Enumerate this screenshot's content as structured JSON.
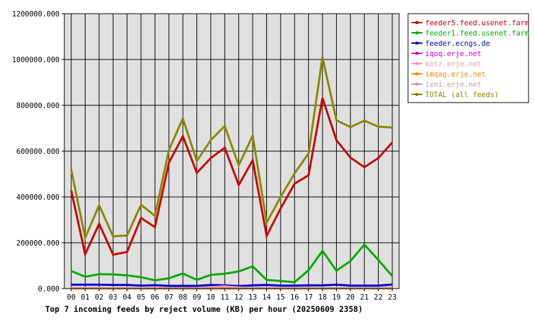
{
  "chart_data": {
    "type": "line",
    "title": "Top 7 incoming feeds by reject volume (KB) per hour (20250609 2358)",
    "xlabel": "",
    "ylabel": "",
    "categories": [
      "00",
      "01",
      "02",
      "03",
      "04",
      "05",
      "06",
      "07",
      "08",
      "09",
      "10",
      "11",
      "12",
      "13",
      "14",
      "15",
      "16",
      "17",
      "18",
      "19",
      "20",
      "21",
      "22",
      "23"
    ],
    "ylim": [
      0,
      1200000
    ],
    "yticks": [
      "0.000",
      "200000.000",
      "400000.000",
      "600000.000",
      "800000.000",
      "1000000.000",
      "1200000.000"
    ],
    "grid": true,
    "legend_position": "top-right",
    "series": [
      {
        "name": "feeder5.feed.usenet.farm",
        "color": "#cc0000",
        "values": [
          428000,
          150000,
          283000,
          148000,
          160000,
          308000,
          268000,
          550000,
          665000,
          505000,
          570000,
          615000,
          452000,
          560000,
          230000,
          350000,
          458000,
          495000,
          832000,
          648000,
          572000,
          530000,
          570000,
          638000
        ]
      },
      {
        "name": "feeder1.feed.usenet.farm",
        "color": "#00aa00",
        "values": [
          77000,
          52000,
          63000,
          62000,
          58000,
          50000,
          36000,
          45000,
          66000,
          38000,
          60000,
          65000,
          75000,
          97000,
          38000,
          33000,
          28000,
          80000,
          165000,
          78000,
          120000,
          192000,
          125000,
          55000
        ]
      },
      {
        "name": "feeder.ecngs.de",
        "color": "#0000cc",
        "values": [
          17000,
          17000,
          17000,
          16000,
          16000,
          13000,
          15000,
          12000,
          12000,
          12000,
          16000,
          14000,
          11000,
          14000,
          16000,
          13000,
          13000,
          14000,
          14000,
          17000,
          13000,
          13000,
          13000,
          18000
        ]
      },
      {
        "name": "iqoq.erje.net",
        "color": "#cc00cc",
        "values": [
          2000,
          2000,
          2000,
          2000,
          2000,
          2000,
          2000,
          2000,
          2000,
          2000,
          2000,
          2000,
          2000,
          2000,
          2000,
          2000,
          2000,
          2000,
          2000,
          2000,
          2000,
          2000,
          2000,
          2000
        ]
      },
      {
        "name": "kotz.erje.net",
        "color": "#ff9999",
        "values": [
          3000,
          3000,
          3000,
          3000,
          3000,
          3000,
          3000,
          3000,
          3000,
          3000,
          6000,
          10000,
          5000,
          3000,
          3000,
          3000,
          3000,
          3000,
          3000,
          3000,
          3000,
          3000,
          3000,
          3000
        ]
      },
      {
        "name": "imqag.erje.net",
        "color": "#ff8800",
        "values": [
          1000,
          1000,
          1000,
          1000,
          1000,
          1000,
          1000,
          1000,
          1000,
          1000,
          1000,
          1000,
          1000,
          1000,
          1000,
          1000,
          1000,
          1000,
          1000,
          1000,
          1000,
          1000,
          1000,
          1000
        ]
      },
      {
        "name": "ixni.erje.net",
        "color": "#cc9999",
        "values": [
          2000,
          2000,
          2000,
          2000,
          2000,
          2000,
          2000,
          2000,
          2000,
          2000,
          2000,
          2000,
          2000,
          2000,
          2000,
          2000,
          2000,
          2000,
          2000,
          2000,
          2000,
          2000,
          2000,
          2000
        ]
      },
      {
        "name": "TOTAL (all feeds)",
        "color": "#888800",
        "values": [
          520000,
          222000,
          364000,
          228000,
          232000,
          366000,
          318000,
          605000,
          742000,
          557000,
          648000,
          710000,
          538000,
          668000,
          288000,
          400000,
          503000,
          590000,
          1010000,
          735000,
          705000,
          733000,
          707000,
          703000
        ]
      }
    ]
  }
}
